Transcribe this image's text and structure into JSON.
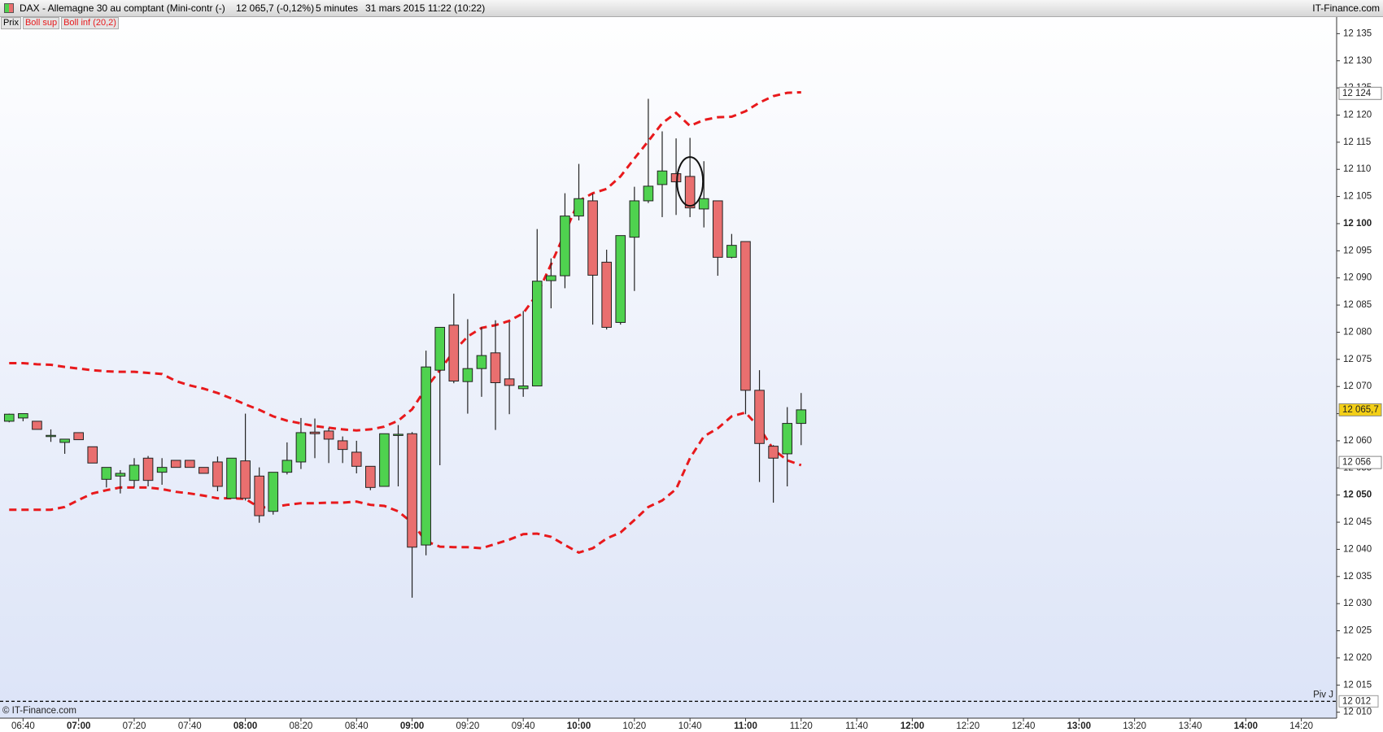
{
  "header": {
    "title": "DAX - Allemagne 30 au comptant (Mini-contr (-)",
    "last": "12 065,7 (-0,12%)",
    "period": "5 minutes",
    "date": "31 mars 2015 11:22 (10:22)",
    "brand": "IT-Finance.com"
  },
  "toolbar": [
    "Prix",
    "Boll sup",
    "Boll inf (20,2)"
  ],
  "footer": "© IT-Finance.com",
  "chart_data": {
    "type": "candlestick",
    "x": [
      395,
      400,
      405,
      410,
      415,
      420,
      425,
      430,
      435,
      440,
      445,
      450,
      455,
      460,
      465,
      470,
      475,
      480,
      485,
      490,
      495,
      500,
      505,
      510,
      515,
      520,
      525,
      530,
      535,
      540,
      545,
      550,
      555,
      560,
      565,
      570,
      575,
      580,
      585,
      590,
      595,
      600,
      605,
      610,
      615,
      620,
      625,
      630,
      635,
      640,
      645,
      650,
      655,
      660,
      665,
      670,
      675,
      680
    ],
    "open": [
      12063.6,
      12064.2,
      12063.6,
      12061.0,
      12059.7,
      12061.5,
      12058.9,
      12052.9,
      12053.5,
      12052.7,
      12056.8,
      12054.2,
      12056.4,
      12056.4,
      12055.1,
      12056.1,
      12049.4,
      12056.3,
      12053.5,
      12047.0,
      12054.2,
      12056.1,
      12061.6,
      12061.8,
      12060.0,
      12057.9,
      12055.3,
      12051.6,
      12061.1,
      12061.3,
      12040.8,
      12073.0,
      12081.3,
      12070.9,
      12073.3,
      12076.2,
      12071.4,
      12069.6,
      12070.1,
      12089.5,
      12090.4,
      12101.4,
      12104.2,
      12092.9,
      12081.8,
      12097.5,
      12104.2,
      12107.2,
      12109.2,
      12108.7,
      12102.7,
      12104.2,
      12093.8,
      12096.7,
      12069.3,
      12059.0,
      12057.6,
      12063.2
    ],
    "high": [
      12065.0,
      12065.0,
      12063.6,
      12062.1,
      12060.3,
      12061.5,
      12058.9,
      12055.1,
      12054.6,
      12056.8,
      12057.2,
      12056.8,
      12056.4,
      12056.4,
      12055.1,
      12057.1,
      12056.8,
      12065.0,
      12055.1,
      12054.2,
      12059.7,
      12064.2,
      12064.1,
      12062.4,
      12060.8,
      12060.0,
      12055.3,
      12061.3,
      12062.9,
      12061.6,
      12076.6,
      12080.9,
      12087.1,
      12082.4,
      12080.9,
      12082.2,
      12081.9,
      12083.9,
      12099.0,
      12093.6,
      12105.6,
      12111.0,
      12105.5,
      12095.2,
      12097.8,
      12106.8,
      12123.0,
      12117.0,
      12115.7,
      12115.8,
      12111.5,
      12104.2,
      12098.1,
      12096.7,
      12073.0,
      12059.2,
      12066.2,
      12068.8
    ],
    "low": [
      12063.4,
      12063.6,
      12062.1,
      12059.8,
      12057.6,
      12060.2,
      12055.9,
      12051.4,
      12050.3,
      12051.4,
      12051.6,
      12051.9,
      12055.1,
      12055.1,
      12054.0,
      12050.7,
      12049.4,
      12049.0,
      12044.9,
      12046.4,
      12053.8,
      12054.8,
      12056.8,
      12055.9,
      12055.9,
      12054.0,
      12050.9,
      12051.6,
      12051.6,
      12031.1,
      12038.9,
      12055.5,
      12070.6,
      12065.0,
      12068.1,
      12062.0,
      12064.9,
      12068.1,
      12070.1,
      12084.4,
      12088.1,
      12100.6,
      12081.4,
      12080.5,
      12081.4,
      12087.6,
      12103.8,
      12101.2,
      12101.6,
      12101.2,
      12099.3,
      12090.4,
      12093.6,
      12064.9,
      12052.4,
      12048.6,
      12051.6,
      12059.2
    ],
    "close": [
      12064.9,
      12065.0,
      12062.1,
      12061.0,
      12060.3,
      12060.2,
      12055.9,
      12055.1,
      12054.0,
      12055.5,
      12052.7,
      12055.1,
      12055.1,
      12055.1,
      12054.0,
      12051.6,
      12056.8,
      12049.4,
      12046.2,
      12054.2,
      12056.4,
      12061.5,
      12061.3,
      12060.3,
      12058.4,
      12055.3,
      12051.4,
      12061.3,
      12061.2,
      12040.4,
      12073.6,
      12080.9,
      12071.0,
      12073.3,
      12075.7,
      12070.7,
      12070.2,
      12070.1,
      12089.4,
      12090.4,
      12101.4,
      12104.6,
      12090.5,
      12080.9,
      12097.8,
      12104.2,
      12106.9,
      12109.7,
      12107.7,
      12102.9,
      12104.6,
      12093.8,
      12096.0,
      12069.3,
      12059.5,
      12056.8,
      12063.2,
      12065.7
    ],
    "up_color": "#4fd24f",
    "down_color": "#e96f6f",
    "series": [
      {
        "name": "Boll sup",
        "color": "#e8191c",
        "values": [
          12074.3,
          12074.3,
          12074.1,
          12074.0,
          12073.6,
          12073.3,
          12073.0,
          12072.8,
          12072.7,
          12072.7,
          12072.5,
          12072.3,
          12071.0,
          12070.2,
          12069.6,
          12068.8,
          12067.8,
          12066.7,
          12065.7,
          12064.5,
          12063.7,
          12063.2,
          12062.7,
          12062.4,
          12062.1,
          12061.9,
          12062.1,
          12062.6,
          12063.7,
          12065.8,
          12069.7,
          12073.0,
          12076.5,
          12079.2,
          12080.8,
          12081.3,
          12082.1,
          12083.5,
          12087.0,
          12092.5,
          12098.3,
          12104.2,
          12105.6,
          12106.4,
          12108.7,
          12112.0,
          12115.2,
          12118.5,
          12120.4,
          12118.0,
          12119.1,
          12119.6,
          12119.7,
          12120.7,
          12122.3,
          12123.5,
          12124.1,
          12124.2
        ]
      },
      {
        "name": "Boll inf (20,2)",
        "color": "#e8191c",
        "values": [
          12047.3,
          12047.3,
          12047.3,
          12047.3,
          12047.8,
          12049.1,
          12050.3,
          12050.9,
          12051.4,
          12051.4,
          12051.4,
          12051.1,
          12050.6,
          12050.3,
          12049.9,
          12049.4,
          12049.4,
          12049.3,
          12047.7,
          12047.8,
          12048.2,
          12048.5,
          12048.5,
          12048.6,
          12048.6,
          12048.8,
          12048.2,
          12048.0,
          12047.0,
          12044.9,
          12041.5,
          12040.5,
          12040.4,
          12040.4,
          12040.2,
          12041.0,
          12041.8,
          12042.8,
          12042.9,
          12042.3,
          12040.8,
          12039.4,
          12040.2,
          12042.0,
          12043.1,
          12045.4,
          12047.8,
          12049.0,
          12051.1,
          12056.8,
          12060.8,
          12062.3,
          12064.5,
          12065.2,
          12062.4,
          12058.4,
          12056.4,
          12055.5
        ]
      }
    ],
    "markers": [
      {
        "value": 12124,
        "label": "12 124",
        "color": "#e8191c",
        "background": "#ffffff"
      },
      {
        "value": 12065.7,
        "label": "12 065,7",
        "color": "#000000",
        "background": "#f3cf16"
      },
      {
        "value": 12056,
        "label": "12 056",
        "color": "#e8191c",
        "background": "#ffffff"
      }
    ],
    "pivot": {
      "name": "Piv J",
      "value": 12012,
      "label": "12 012"
    },
    "xlim": [
      391.7,
      872.7
    ],
    "ylim": [
      12008.9,
      12138.2
    ],
    "xticks": [
      {
        "value": 400,
        "label": "06:40"
      },
      {
        "value": 420,
        "label": "07:00"
      },
      {
        "value": 440,
        "label": "07:20"
      },
      {
        "value": 460,
        "label": "07:40"
      },
      {
        "value": 480,
        "label": "08:00"
      },
      {
        "value": 500,
        "label": "08:20"
      },
      {
        "value": 520,
        "label": "08:40"
      },
      {
        "value": 540,
        "label": "09:00"
      },
      {
        "value": 560,
        "label": "09:20"
      },
      {
        "value": 580,
        "label": "09:40"
      },
      {
        "value": 600,
        "label": "10:00"
      },
      {
        "value": 620,
        "label": "10:20"
      },
      {
        "value": 640,
        "label": "10:40"
      },
      {
        "value": 660,
        "label": "11:00"
      },
      {
        "value": 680,
        "label": "11:20"
      },
      {
        "value": 700,
        "label": "11:40"
      },
      {
        "value": 720,
        "label": "12:00"
      },
      {
        "value": 740,
        "label": "12:20"
      },
      {
        "value": 760,
        "label": "12:40"
      },
      {
        "value": 780,
        "label": "13:00"
      },
      {
        "value": 800,
        "label": "13:20"
      },
      {
        "value": 820,
        "label": "13:40"
      },
      {
        "value": 840,
        "label": "14:00"
      },
      {
        "value": 860,
        "label": "14:20"
      }
    ],
    "yticks": [
      {
        "value": 12010,
        "label": "12 010"
      },
      {
        "value": 12015,
        "label": "12 015"
      },
      {
        "value": 12020,
        "label": "12 020"
      },
      {
        "value": 12025,
        "label": "12 025"
      },
      {
        "value": 12030,
        "label": "12 030"
      },
      {
        "value": 12035,
        "label": "12 035"
      },
      {
        "value": 12040,
        "label": "12 040"
      },
      {
        "value": 12045,
        "label": "12 045"
      },
      {
        "value": 12050,
        "label": "12 050"
      },
      {
        "value": 12055,
        "label": "12 055"
      },
      {
        "value": 12060,
        "label": "12 060"
      },
      {
        "value": 12065,
        "label": "12 065"
      },
      {
        "value": 12070,
        "label": "12 070"
      },
      {
        "value": 12075,
        "label": "12 075"
      },
      {
        "value": 12080,
        "label": "12 080"
      },
      {
        "value": 12085,
        "label": "12 085"
      },
      {
        "value": 12090,
        "label": "12 090"
      },
      {
        "value": 12095,
        "label": "12 095"
      },
      {
        "value": 12100,
        "label": "12 100"
      },
      {
        "value": 12105,
        "label": "12 105"
      },
      {
        "value": 12110,
        "label": "12 110"
      },
      {
        "value": 12115,
        "label": "12 115"
      },
      {
        "value": 12120,
        "label": "12 120"
      },
      {
        "value": 12125,
        "label": "12 125"
      },
      {
        "value": 12130,
        "label": "12 130"
      },
      {
        "value": 12135,
        "label": "12 135"
      }
    ]
  }
}
